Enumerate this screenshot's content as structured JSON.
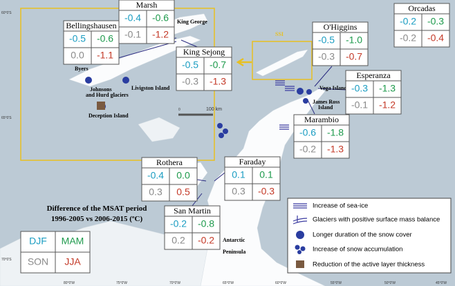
{
  "stations": [
    {
      "name": "Marsh",
      "values": [
        "-0.4",
        "-0.6",
        "-0.1",
        "-1.2"
      ]
    },
    {
      "name": "Bellingshausen",
      "values": [
        "-0.5",
        "-0.6",
        "0.0",
        "-1.1"
      ]
    },
    {
      "name": "King Sejong",
      "values": [
        "-0.5",
        "-0.7",
        "-0.3",
        "-1.3"
      ]
    },
    {
      "name": "O'Higgins",
      "values": [
        "-0.5",
        "-1.0",
        "-0.3",
        "-0.7"
      ]
    },
    {
      "name": "Orcadas",
      "values": [
        "-0.2",
        "-0.3",
        "-0.2",
        "-0.4"
      ]
    },
    {
      "name": "Esperanza",
      "values": [
        "-0.3",
        "-1.3",
        "-0.1",
        "-1.2"
      ]
    },
    {
      "name": "Marambio",
      "values": [
        "-0.6",
        "-1.8",
        "-0.2",
        "-1.3"
      ]
    },
    {
      "name": "Faraday",
      "values": [
        "0.1",
        "0.1",
        "0.3",
        "-0.3"
      ]
    },
    {
      "name": "Rothera",
      "values": [
        "-0.4",
        "0.0",
        "0.3",
        "0.5"
      ]
    },
    {
      "name": "San Martin",
      "values": [
        "-0.2",
        "-0.8",
        "0.2",
        "-0.2"
      ]
    }
  ],
  "places": [
    "King George",
    "SSI",
    "Byers",
    "Johnsons",
    "and Hurd glaciers",
    "Livigston Island",
    "Deception Island",
    "Vega Island",
    "James Ross",
    "Island",
    "Antarctic",
    "Peninsula"
  ],
  "scale": [
    "0",
    "100 km"
  ],
  "coordinates": [
    "60°0'S",
    "65°0'S",
    "70°0'S",
    "80°0'W",
    "75°0'W",
    "70°0'W",
    "65°0'W",
    "60°0'W",
    "55°0'W",
    "50°0'W",
    "45°0'W"
  ],
  "key": {
    "title": [
      "Difference of the MSAT period",
      "1996-2005 vs 2006-2015 (ºC)"
    ],
    "seasons": [
      "DJF",
      "MAM",
      "SON",
      "JJA"
    ]
  },
  "legend": [
    "Increase of sea-ice",
    "Glaciers with positive surface mass balance",
    "Longer duration of the snow cover",
    "Increase of snow accumulation",
    "Reduction of the active layer thickness"
  ]
}
